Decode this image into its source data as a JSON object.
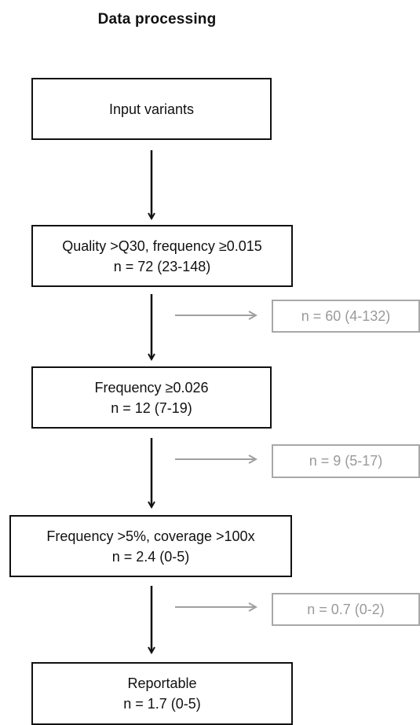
{
  "title": "Data processing",
  "steps": [
    {
      "label": "Input variants",
      "count": ""
    },
    {
      "label": "Quality >Q30, frequency ≥0.015",
      "count": "n = 72 (23-148)"
    },
    {
      "label": "Frequency ≥0.026",
      "count": "n = 12 (7-19)"
    },
    {
      "label": "Frequency >5%, coverage >100x",
      "count": "n = 2.4 (0-5)"
    },
    {
      "label": "Reportable",
      "count": "n = 1.7 (0-5)"
    }
  ],
  "filtered": [
    {
      "count": "n = 60 (4-132)"
    },
    {
      "count": "n = 9 (5-17)"
    },
    {
      "count": "n = 0.7 (0-2)"
    }
  ]
}
